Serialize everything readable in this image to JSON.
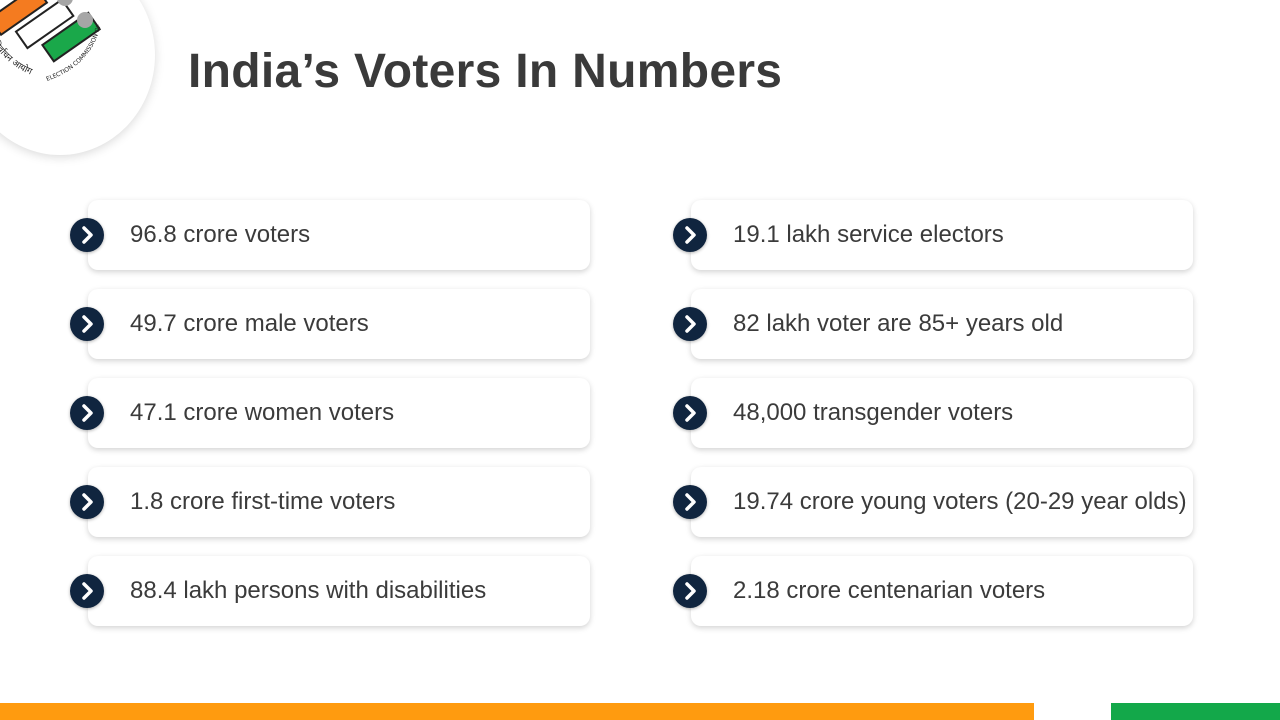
{
  "slide": {
    "title": "India’s Voters In Numbers"
  },
  "logo": {
    "name": "election-commission-of-india-logo",
    "hindi_text": "भारत निर्वाचन आयोग",
    "english_text": "ELECTION COMMISSION OF INDIA",
    "colors": {
      "orange": "#f47b20",
      "white": "#ffffff",
      "green": "#1aa84a",
      "dots": "#a6a6a6"
    }
  },
  "left_column": [
    {
      "label": "96.8 crore voters"
    },
    {
      "label": "49.7 crore male voters"
    },
    {
      "label": "47.1 crore women voters"
    },
    {
      "label": "1.8 crore first-time voters"
    },
    {
      "label": "88.4 lakh persons with disabilities"
    }
  ],
  "right_column": [
    {
      "label": "19.1 lakh service electors"
    },
    {
      "label": "82 lakh voter are 85+ years old"
    },
    {
      "label": "48,000 transgender voters"
    },
    {
      "label": "19.74 crore young voters (20-29 year olds)"
    },
    {
      "label": "2.18 crore centenarian voters"
    }
  ],
  "theme": {
    "bullet_color": "#10253f",
    "footer_orange": "#ff9b0f",
    "footer_green": "#13a84a",
    "bullet_icon": "chevron-right-icon"
  }
}
